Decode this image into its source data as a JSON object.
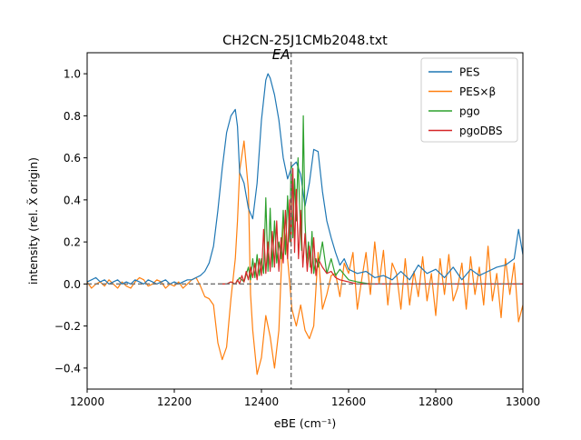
{
  "chart_data": {
    "type": "line",
    "title": "CH2CN-25J1CMb2048.txt",
    "xlabel": "eBE (cm⁻¹)",
    "ylabel": "intensity (rel. X̃ origin)",
    "xlim": [
      12000,
      13000
    ],
    "ylim": [
      -0.5,
      1.1
    ],
    "xticks": [
      12000,
      12200,
      12400,
      12600,
      12800,
      13000
    ],
    "yticks": [
      -0.4,
      -0.2,
      0.0,
      0.2,
      0.4,
      0.6,
      0.8,
      1.0
    ],
    "xtick_labels": [
      "12000",
      "12200",
      "12400",
      "12600",
      "12800",
      "13000"
    ],
    "ytick_labels": [
      "−0.4",
      "−0.2",
      "0.0",
      "0.2",
      "0.4",
      "0.6",
      "0.8",
      "1.0"
    ],
    "grid": false,
    "legend_position": "top-right",
    "annotations": [
      {
        "text": "EA",
        "x": 12468,
        "style": "vertical dashed line"
      },
      {
        "text": "",
        "y": 0.0,
        "style": "horizontal dashed line"
      }
    ],
    "series": [
      {
        "name": "PES",
        "color": "#1f77b4",
        "x": [
          12000,
          12010,
          12020,
          12030,
          12040,
          12050,
          12060,
          12070,
          12080,
          12090,
          12100,
          12110,
          12120,
          12130,
          12140,
          12150,
          12160,
          12170,
          12180,
          12190,
          12200,
          12210,
          12220,
          12230,
          12240,
          12250,
          12260,
          12270,
          12280,
          12290,
          12300,
          12310,
          12320,
          12330,
          12340,
          12345,
          12350,
          12360,
          12370,
          12380,
          12390,
          12400,
          12410,
          12415,
          12420,
          12430,
          12440,
          12450,
          12460,
          12470,
          12480,
          12490,
          12500,
          12510,
          12520,
          12530,
          12540,
          12550,
          12560,
          12570,
          12580,
          12590,
          12600,
          12620,
          12640,
          12660,
          12680,
          12700,
          12720,
          12740,
          12760,
          12780,
          12800,
          12820,
          12840,
          12860,
          12880,
          12900,
          12920,
          12940,
          12960,
          12980,
          12990,
          13000
        ],
        "values": [
          0.01,
          0.02,
          0.03,
          0.01,
          0.02,
          0.0,
          0.01,
          0.02,
          0.0,
          0.01,
          0.0,
          0.02,
          0.01,
          0.0,
          0.02,
          0.01,
          0.0,
          0.01,
          0.02,
          0.0,
          0.01,
          0.0,
          0.01,
          0.02,
          0.02,
          0.03,
          0.04,
          0.06,
          0.1,
          0.18,
          0.35,
          0.55,
          0.72,
          0.8,
          0.83,
          0.75,
          0.53,
          0.48,
          0.36,
          0.31,
          0.48,
          0.78,
          0.97,
          1.0,
          0.98,
          0.9,
          0.78,
          0.6,
          0.5,
          0.56,
          0.58,
          0.52,
          0.37,
          0.48,
          0.64,
          0.63,
          0.44,
          0.3,
          0.22,
          0.15,
          0.09,
          0.12,
          0.07,
          0.05,
          0.06,
          0.03,
          0.04,
          0.02,
          0.06,
          0.02,
          0.09,
          0.05,
          0.07,
          0.03,
          0.08,
          0.02,
          0.07,
          0.04,
          0.06,
          0.08,
          0.09,
          0.12,
          0.26,
          0.14
        ]
      },
      {
        "name": "PES×β",
        "color": "#ff7f0e",
        "x": [
          12000,
          12010,
          12020,
          12030,
          12040,
          12050,
          12060,
          12070,
          12080,
          12090,
          12100,
          12110,
          12120,
          12130,
          12140,
          12150,
          12160,
          12170,
          12180,
          12190,
          12200,
          12210,
          12220,
          12230,
          12240,
          12250,
          12260,
          12270,
          12280,
          12290,
          12300,
          12310,
          12320,
          12330,
          12340,
          12345,
          12350,
          12360,
          12370,
          12375,
          12380,
          12390,
          12400,
          12410,
          12420,
          12430,
          12440,
          12450,
          12460,
          12470,
          12480,
          12490,
          12500,
          12510,
          12520,
          12530,
          12540,
          12550,
          12560,
          12570,
          12580,
          12590,
          12600,
          12610,
          12620,
          12630,
          12640,
          12650,
          12660,
          12670,
          12680,
          12690,
          12700,
          12710,
          12720,
          12730,
          12740,
          12750,
          12760,
          12770,
          12780,
          12790,
          12800,
          12810,
          12820,
          12830,
          12840,
          12850,
          12860,
          12870,
          12880,
          12890,
          12900,
          12910,
          12920,
          12930,
          12940,
          12950,
          12960,
          12970,
          12980,
          12990,
          13000
        ],
        "values": [
          0.01,
          -0.02,
          0.0,
          0.01,
          -0.01,
          0.02,
          0.0,
          -0.02,
          0.01,
          -0.01,
          -0.02,
          0.01,
          0.03,
          0.02,
          -0.01,
          0.0,
          0.02,
          0.01,
          -0.02,
          0.0,
          -0.01,
          0.01,
          -0.02,
          0.0,
          0.02,
          0.03,
          -0.01,
          -0.06,
          -0.07,
          -0.1,
          -0.28,
          -0.36,
          -0.3,
          -0.07,
          0.12,
          0.3,
          0.54,
          0.68,
          0.45,
          -0.05,
          -0.22,
          -0.43,
          -0.35,
          -0.15,
          -0.25,
          -0.4,
          -0.22,
          0.3,
          0.12,
          -0.12,
          -0.2,
          -0.1,
          -0.22,
          -0.26,
          -0.2,
          0.15,
          -0.12,
          -0.05,
          0.04,
          0.05,
          -0.06,
          0.1,
          0.05,
          0.15,
          -0.12,
          0.02,
          0.15,
          -0.05,
          0.2,
          0.0,
          0.16,
          -0.1,
          0.1,
          0.05,
          -0.12,
          0.12,
          -0.1,
          0.06,
          -0.06,
          0.13,
          -0.08,
          0.05,
          -0.15,
          0.12,
          -0.05,
          0.14,
          -0.08,
          -0.02,
          0.1,
          -0.12,
          0.13,
          -0.05,
          0.08,
          -0.1,
          0.18,
          -0.08,
          0.05,
          -0.16,
          0.12,
          -0.05,
          0.1,
          -0.18,
          -0.1
        ]
      },
      {
        "name": "pgo",
        "color": "#2ca02c",
        "x": [
          12300,
          12320,
          12330,
          12340,
          12350,
          12360,
          12370,
          12375,
          12380,
          12385,
          12390,
          12395,
          12400,
          12405,
          12410,
          12415,
          12420,
          12425,
          12430,
          12435,
          12440,
          12445,
          12450,
          12455,
          12460,
          12465,
          12468,
          12472,
          12476,
          12480,
          12484,
          12488,
          12492,
          12496,
          12500,
          12504,
          12508,
          12512,
          12516,
          12520,
          12525,
          12530,
          12540,
          12550,
          12560,
          12570,
          12580,
          12600,
          12620,
          12650,
          12700,
          12800,
          12900,
          13000
        ],
        "values": [
          0.0,
          0.0,
          0.01,
          0.0,
          0.03,
          0.01,
          0.08,
          0.02,
          0.12,
          0.03,
          0.14,
          0.04,
          0.12,
          0.05,
          0.41,
          0.06,
          0.36,
          0.08,
          0.3,
          0.1,
          0.2,
          0.12,
          0.35,
          0.14,
          0.42,
          0.2,
          0.58,
          0.22,
          0.5,
          0.3,
          0.6,
          0.35,
          0.16,
          0.8,
          0.3,
          0.1,
          0.2,
          0.08,
          0.25,
          0.05,
          0.12,
          0.08,
          0.2,
          0.05,
          0.12,
          0.04,
          0.07,
          0.02,
          0.01,
          0.0,
          0.0,
          0.0,
          0.0,
          0.0
        ]
      },
      {
        "name": "pgoDBS",
        "color": "#d62728",
        "x": [
          12300,
          12320,
          12330,
          12340,
          12345,
          12350,
          12355,
          12360,
          12365,
          12370,
          12375,
          12380,
          12385,
          12390,
          12395,
          12400,
          12405,
          12410,
          12415,
          12420,
          12425,
          12430,
          12435,
          12440,
          12445,
          12450,
          12455,
          12460,
          12465,
          12468,
          12472,
          12476,
          12480,
          12485,
          12490,
          12495,
          12500,
          12505,
          12510,
          12515,
          12520,
          12525,
          12530,
          12540,
          12550,
          12560,
          12570,
          12580,
          12600,
          12620,
          12650,
          12700,
          12800,
          12900,
          13000
        ],
        "values": [
          0.0,
          0.0,
          0.01,
          0.0,
          0.02,
          0.0,
          0.04,
          0.01,
          0.06,
          0.02,
          0.08,
          0.03,
          0.1,
          0.02,
          0.12,
          0.04,
          0.26,
          0.05,
          0.2,
          0.06,
          0.25,
          0.08,
          0.3,
          0.06,
          0.22,
          0.1,
          0.35,
          0.12,
          0.4,
          0.18,
          0.55,
          0.15,
          0.45,
          0.12,
          0.35,
          0.08,
          0.24,
          0.06,
          0.18,
          0.05,
          0.22,
          0.04,
          0.12,
          0.08,
          0.05,
          0.06,
          0.03,
          0.02,
          0.01,
          0.0,
          0.0,
          0.0,
          0.0,
          0.0,
          0.0
        ]
      }
    ]
  }
}
